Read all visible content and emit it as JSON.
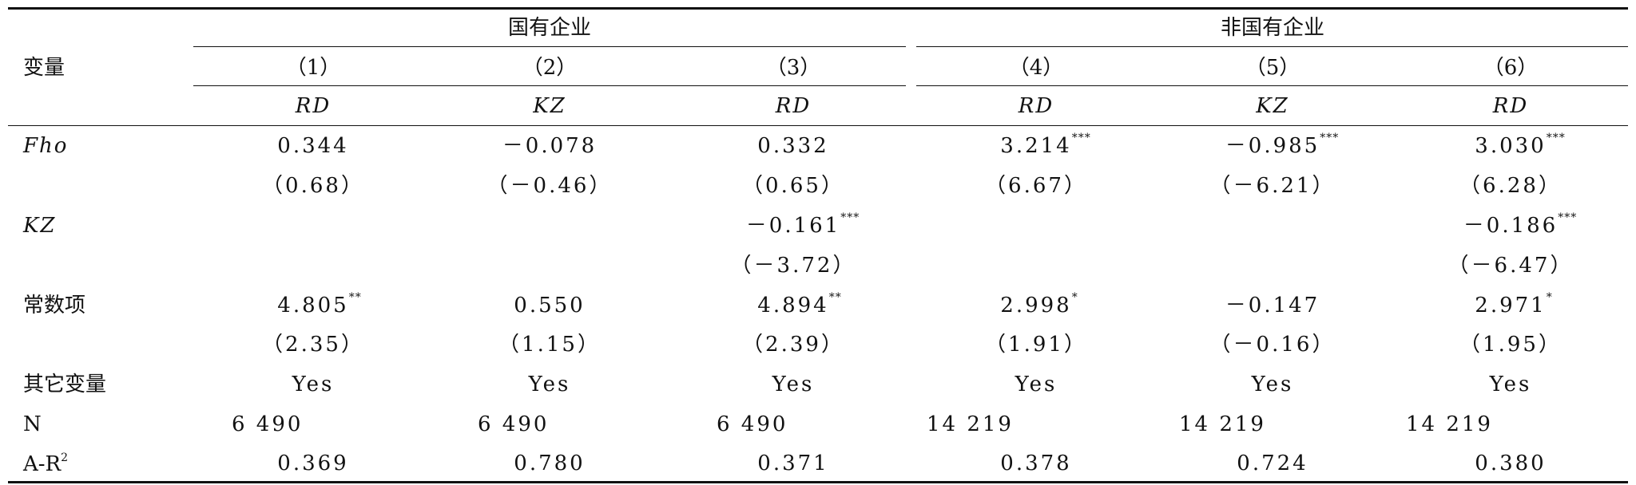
{
  "header": {
    "stub": "变量",
    "groups": [
      "国有企业",
      "非国有企业"
    ],
    "columns": [
      "（1）",
      "（2）",
      "（3）",
      "（4）",
      "（5）",
      "（6）"
    ],
    "dependent": [
      "RD",
      "KZ",
      "RD",
      "RD",
      "KZ",
      "RD"
    ]
  },
  "rows": [
    {
      "label": "Fho",
      "italic": true,
      "cells": [
        {
          "text": "0.344"
        },
        {
          "text": "－0.078"
        },
        {
          "text": "0.332"
        },
        {
          "text": "3.214",
          "stars": "***"
        },
        {
          "text": "－0.985",
          "stars": "***"
        },
        {
          "text": "3.030",
          "stars": "***"
        }
      ]
    },
    {
      "cells": [
        {
          "text": "（0.68）"
        },
        {
          "text": "（－0.46）"
        },
        {
          "text": "（0.65）"
        },
        {
          "text": "（6.67）"
        },
        {
          "text": "（－6.21）"
        },
        {
          "text": "（6.28）"
        }
      ]
    },
    {
      "label": "KZ",
      "italic": true,
      "cells": [
        null,
        null,
        {
          "text": "－0.161",
          "stars": "***"
        },
        null,
        null,
        {
          "text": "－0.186",
          "stars": "***"
        }
      ]
    },
    {
      "cells": [
        null,
        null,
        {
          "text": "（－3.72）"
        },
        null,
        null,
        {
          "text": "（－6.47）"
        }
      ]
    },
    {
      "label": "常数项",
      "cells": [
        {
          "text": "4.805",
          "stars": "**"
        },
        {
          "text": "0.550"
        },
        {
          "text": "4.894",
          "stars": "**"
        },
        {
          "text": "2.998",
          "stars": "*"
        },
        {
          "text": "－0.147"
        },
        {
          "text": "2.971",
          "stars": "*"
        }
      ]
    },
    {
      "cells": [
        {
          "text": "（2.35）"
        },
        {
          "text": "（1.15）"
        },
        {
          "text": "（2.39）"
        },
        {
          "text": "（1.91）"
        },
        {
          "text": "（－0.16）"
        },
        {
          "text": "（1.95）"
        }
      ]
    },
    {
      "label": "其它变量",
      "cells": [
        {
          "text": "Yes"
        },
        {
          "text": "Yes"
        },
        {
          "text": "Yes"
        },
        {
          "text": "Yes"
        },
        {
          "text": "Yes"
        },
        {
          "text": "Yes"
        }
      ]
    },
    {
      "label": "N",
      "left": true,
      "cells": [
        {
          "text": "6 490"
        },
        {
          "text": "6 490"
        },
        {
          "text": "6 490"
        },
        {
          "text": "14 219"
        },
        {
          "text": "14 219"
        },
        {
          "text": "14 219"
        }
      ]
    },
    {
      "label": "A-R",
      "label_sup": "2",
      "cells": [
        {
          "text": "0.369"
        },
        {
          "text": "0.780"
        },
        {
          "text": "0.371"
        },
        {
          "text": "0.378"
        },
        {
          "text": "0.724"
        },
        {
          "text": "0.380"
        }
      ]
    }
  ]
}
